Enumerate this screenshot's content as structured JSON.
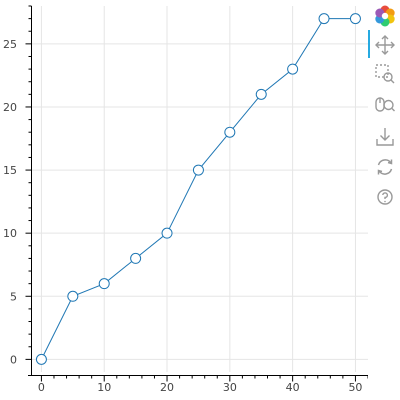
{
  "chart_data": {
    "type": "line",
    "x": [
      0,
      5,
      10,
      15,
      20,
      25,
      30,
      35,
      40,
      45,
      50
    ],
    "y": [
      0,
      5,
      6,
      8,
      10,
      15,
      18,
      21,
      23,
      27,
      27
    ],
    "xlim": [
      -1.5,
      52
    ],
    "ylim": [
      -1,
      28
    ],
    "xticks": [
      "0",
      "10",
      "20",
      "30",
      "40",
      "50"
    ],
    "yticks": [
      "0",
      "5",
      "10",
      "15",
      "20",
      "25"
    ],
    "grid": true,
    "line_color": "#1f77b4",
    "marker": "circle",
    "marker_fill": "#ffffff"
  },
  "toolbar": {
    "tools": [
      {
        "name": "bokeh-logo",
        "icon": "bokeh-logo-icon",
        "active": false
      },
      {
        "name": "pan",
        "icon": "pan-icon",
        "active": true
      },
      {
        "name": "box-zoom",
        "icon": "box-zoom-icon",
        "active": false
      },
      {
        "name": "wheel-zoom",
        "icon": "wheel-zoom-icon",
        "active": false
      },
      {
        "name": "save",
        "icon": "save-icon",
        "active": false
      },
      {
        "name": "reset",
        "icon": "reset-icon",
        "active": false
      },
      {
        "name": "help",
        "icon": "help-icon",
        "active": false
      }
    ]
  }
}
